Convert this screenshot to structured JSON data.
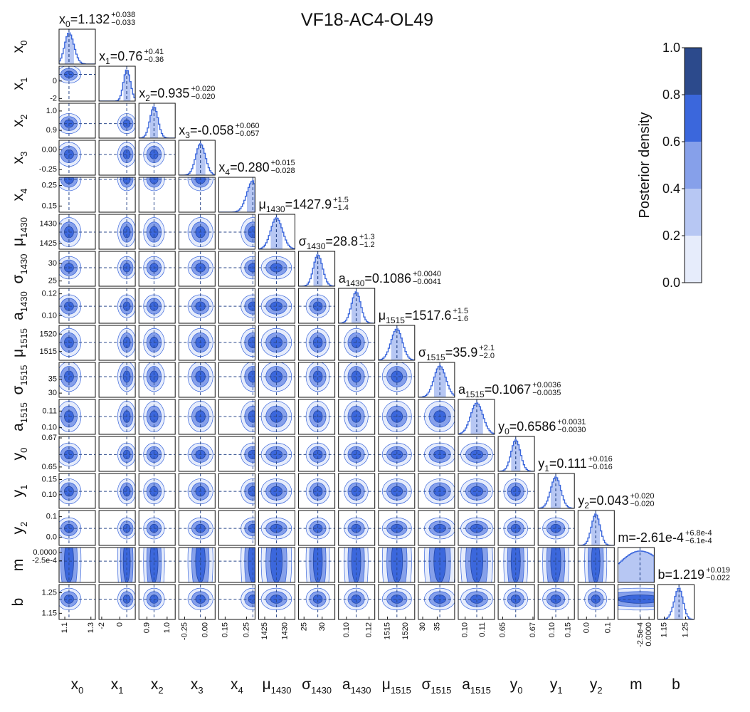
{
  "chart_data": {
    "type": "corner",
    "title": "VF18-AC4-OL49",
    "parameters": [
      {
        "name": "x",
        "sub": "0",
        "estimate": {
          "value": 1.132,
          "label": "=1.132"
        },
        "plus": {
          "value": 0.038,
          "label": "+0.038"
        },
        "minus": {
          "value": -0.033,
          "label": "−0.033"
        },
        "lim": [
          1.056,
          1.334
        ],
        "ticks": [
          1.1,
          1.3
        ]
      },
      {
        "name": "x",
        "sub": "1",
        "estimate": {
          "value": 0.76,
          "label": "=0.76"
        },
        "plus": {
          "value": 0.41,
          "label": "+0.41"
        },
        "minus": {
          "value": -0.36,
          "label": "−0.36"
        },
        "lim": [
          -2.3,
          1.7
        ],
        "ticks": [
          -2,
          0
        ]
      },
      {
        "name": "x",
        "sub": "2",
        "estimate": {
          "value": 0.935,
          "label": "=0.935"
        },
        "plus": {
          "value": 0.02,
          "label": "+0.020"
        },
        "minus": {
          "value": -0.02,
          "label": "−0.020"
        },
        "lim": [
          0.86,
          1.04
        ],
        "ticks": [
          0.9,
          {
            "value": 1,
            "label": "1.0"
          }
        ]
      },
      {
        "name": "x",
        "sub": "3",
        "estimate": {
          "value": -0.058,
          "label": "=-0.058"
        },
        "plus": {
          "value": 0.06,
          "label": "+0.060"
        },
        "minus": {
          "value": -0.057,
          "label": "−0.057"
        },
        "lim": [
          -0.32,
          0.12
        ],
        "ticks": [
          -0.25,
          {
            "value": 0,
            "label": "0.00"
          }
        ]
      },
      {
        "name": "x",
        "sub": "4",
        "estimate": {
          "value": 0.28,
          "label": "=0.280"
        },
        "plus": {
          "value": 0.015,
          "label": "+0.015"
        },
        "minus": {
          "value": -0.028,
          "label": "−0.028"
        },
        "lim": [
          0.12,
          0.29
        ],
        "ticks": [
          0.15,
          0.25
        ]
      },
      {
        "name": "μ",
        "sub": "1430",
        "estimate": {
          "value": 1427.9,
          "label": "=1427.9"
        },
        "plus": {
          "value": 1.5,
          "label": "+1.5"
        },
        "minus": {
          "value": -1.4,
          "label": "−1.4"
        },
        "lim": [
          1423.5,
          1432.5
        ],
        "ticks": [
          1425,
          1430
        ]
      },
      {
        "name": "σ",
        "sub": "1430",
        "estimate": {
          "value": 28.8,
          "label": "=28.8"
        },
        "plus": {
          "value": 1.3,
          "label": "+1.3"
        },
        "minus": {
          "value": -1.2,
          "label": "−1.2"
        },
        "lim": [
          23.5,
          33.5
        ],
        "ticks": [
          25,
          30
        ]
      },
      {
        "name": "a",
        "sub": "1430",
        "estimate": {
          "value": 0.1086,
          "label": "=0.1086"
        },
        "plus": {
          "value": 0.004,
          "label": "+0.0040"
        },
        "minus": {
          "value": -0.0041,
          "label": "−0.0041"
        },
        "lim": [
          0.093,
          0.125
        ],
        "ticks": [
          {
            "value": 0.1,
            "label": "0.10"
          },
          0.12
        ]
      },
      {
        "name": "μ",
        "sub": "1515",
        "estimate": {
          "value": 1517.6,
          "label": "=1517.6"
        },
        "plus": {
          "value": 1.5,
          "label": "+1.5"
        },
        "minus": {
          "value": -1.6,
          "label": "−1.6"
        },
        "lim": [
          1512.5,
          1522.5
        ],
        "ticks": [
          1515,
          1520
        ]
      },
      {
        "name": "σ",
        "sub": "1515",
        "estimate": {
          "value": 35.9,
          "label": "=35.9"
        },
        "plus": {
          "value": 2.1,
          "label": "+2.1"
        },
        "minus": {
          "value": -2.0,
          "label": "−2.0"
        },
        "lim": [
          28.5,
          41
        ],
        "ticks": [
          30,
          35
        ]
      },
      {
        "name": "a",
        "sub": "1515",
        "estimate": {
          "value": 0.1067,
          "label": "=0.1067"
        },
        "plus": {
          "value": 0.0036,
          "label": "+0.0036"
        },
        "minus": {
          "value": -0.0035,
          "label": "−0.0035"
        },
        "lim": [
          0.096,
          0.117
        ],
        "ticks": [
          {
            "value": 0.1,
            "label": "0.10"
          },
          0.11
        ]
      },
      {
        "name": "y",
        "sub": "0",
        "estimate": {
          "value": 0.6586,
          "label": "=0.6586"
        },
        "plus": {
          "value": 0.0031,
          "label": "+0.0031"
        },
        "minus": {
          "value": -0.003,
          "label": "−0.0030"
        },
        "lim": [
          0.647,
          0.671
        ],
        "ticks": [
          0.65,
          0.67
        ]
      },
      {
        "name": "y",
        "sub": "1",
        "estimate": {
          "value": 0.111,
          "label": "=0.111"
        },
        "plus": {
          "value": 0.016,
          "label": "+0.016"
        },
        "minus": {
          "value": -0.016,
          "label": "−0.016"
        },
        "lim": [
          0.055,
          0.17
        ],
        "ticks": [
          {
            "value": 0.1,
            "label": "0.10"
          },
          0.15
        ]
      },
      {
        "name": "y",
        "sub": "2",
        "estimate": {
          "value": 0.043,
          "label": "=0.043"
        },
        "plus": {
          "value": 0.02,
          "label": "+0.020"
        },
        "minus": {
          "value": -0.02,
          "label": "−0.020"
        },
        "lim": [
          -0.04,
          0.13
        ],
        "ticks": [
          {
            "value": 0,
            "label": "0.0"
          },
          0.1
        ]
      },
      {
        "name": "m",
        "estimate": {
          "value": -0.000261,
          "label": "=-2.61e-4"
        },
        "plus": {
          "value": 0.00068,
          "label": "+6.8e-4"
        },
        "minus": {
          "value": -0.00061,
          "label": "−6.1e-4"
        },
        "lim": [
          -0.0009,
          0.00015
        ],
        "ticks": [
          {
            "value": -0.00025,
            "label": "-2.5e-4"
          },
          {
            "value": 0,
            "label": "0.0000"
          }
        ]
      },
      {
        "name": "b",
        "estimate": {
          "value": 1.219,
          "label": "=1.219"
        },
        "plus": {
          "value": 0.019,
          "label": "+0.019"
        },
        "minus": {
          "value": -0.022,
          "label": "−0.022"
        },
        "lim": [
          1.12,
          1.29
        ],
        "ticks": [
          1.15,
          1.25
        ]
      }
    ],
    "colorbar": {
      "label": "Posterior density",
      "ylim": [
        0,
        1
      ],
      "yticks": [
        {
          "value": 0,
          "label": "0.0"
        },
        {
          "value": 0.2,
          "label": "0.2"
        },
        {
          "value": 0.4,
          "label": "0.4"
        },
        {
          "value": 0.6,
          "label": "0.6"
        },
        {
          "value": 0.8,
          "label": "0.8"
        },
        {
          "value": 1,
          "label": "1.0"
        }
      ],
      "colors": [
        "#e6ecfb",
        "#b7c7f3",
        "#86a0ea",
        "#3b67dc",
        "#2c4a8c"
      ]
    }
  }
}
